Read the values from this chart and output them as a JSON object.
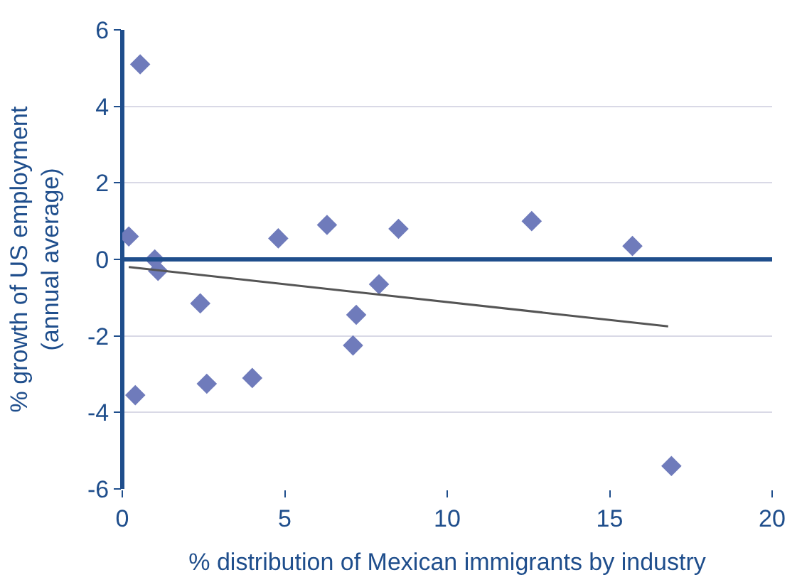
{
  "chart_data": {
    "type": "scatter",
    "xlabel": "% distribution of Mexican immigrants by industry",
    "ylabel": "% growth of US employment\n(annual average)",
    "ref_lines": [
      {
        "axis": "y",
        "value": 0,
        "color": "#1f4e8c"
      }
    ],
    "x": [
      0.2,
      0.55,
      0.4,
      1.0,
      1.1,
      2.4,
      2.6,
      4.0,
      4.8,
      6.3,
      7.2,
      7.1,
      7.9,
      8.5,
      12.6,
      15.7,
      16.9
    ],
    "series": [
      {
        "color": "#6f7bbb",
        "marker": "diamond",
        "values": [
          0.6,
          5.1,
          -3.55,
          0.0,
          -0.3,
          -1.15,
          -3.25,
          -3.1,
          0.55,
          0.9,
          -1.45,
          -2.25,
          -0.65,
          0.8,
          1.0,
          0.35,
          -5.4
        ]
      },
      {
        "type": "line",
        "color": "#555555",
        "x": [
          0.2,
          16.8
        ],
        "values": [
          -0.2,
          -1.75
        ]
      }
    ],
    "xlim": [
      0,
      20
    ],
    "xticks": [
      0,
      5,
      10,
      15,
      20
    ],
    "ylim": [
      -6,
      6
    ],
    "yticks": [
      -6,
      -4,
      -2,
      0,
      2,
      4,
      6
    ],
    "grid": "y",
    "legend": false
  }
}
